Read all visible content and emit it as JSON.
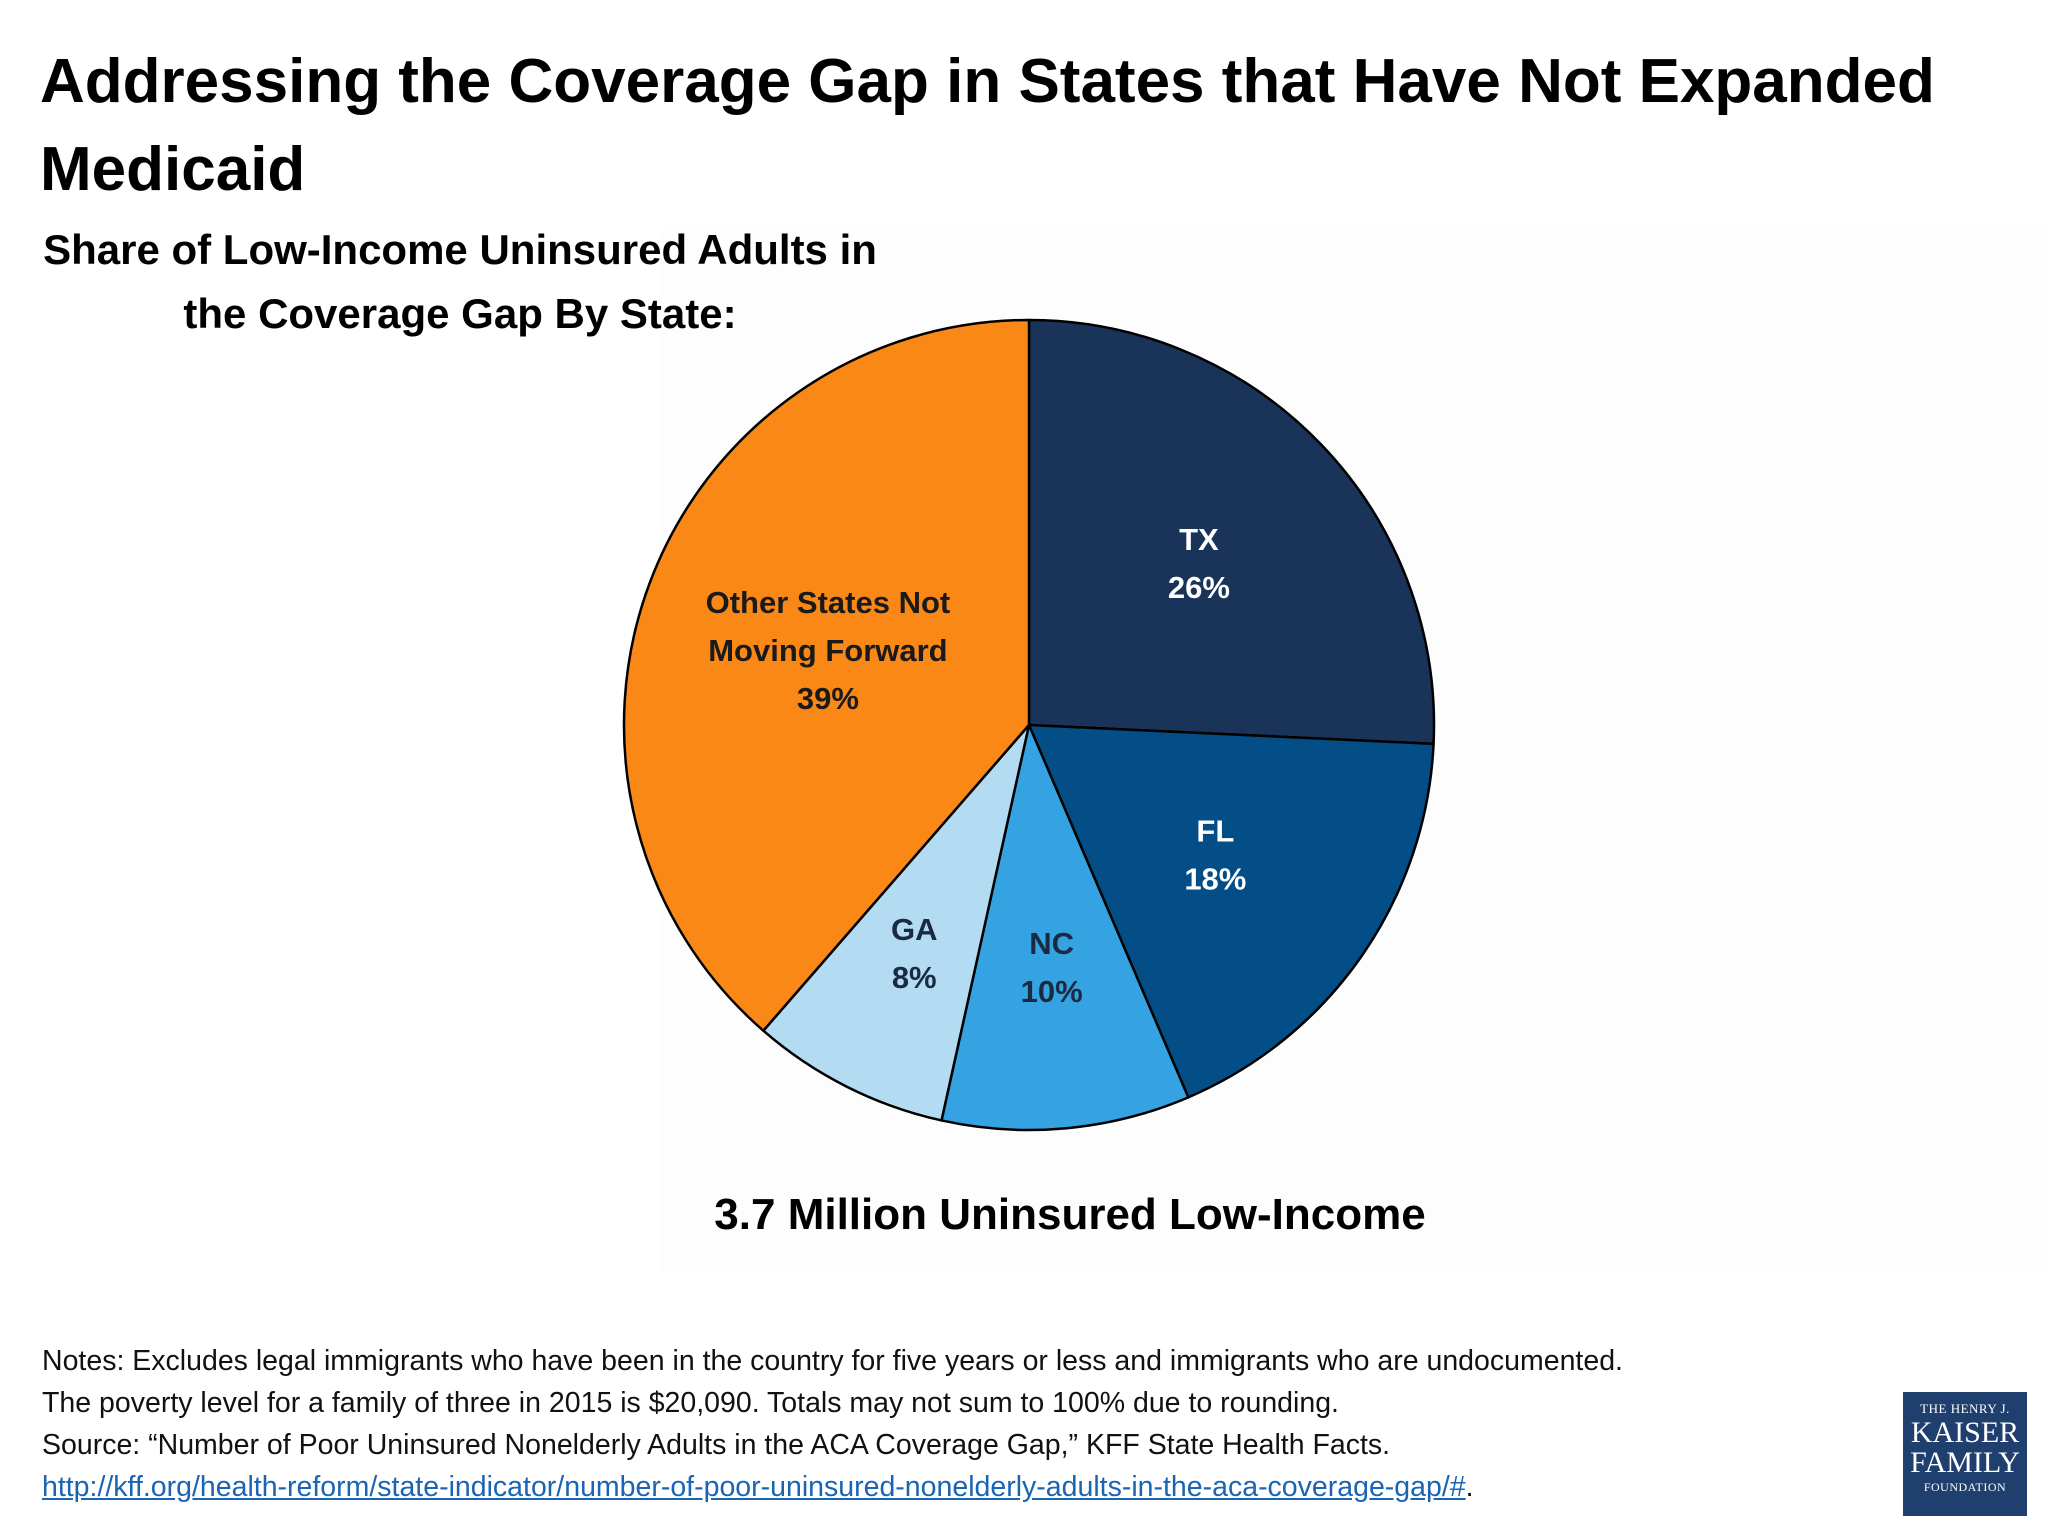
{
  "title": "Addressing the Coverage Gap in States that Have Not Expanded Medicaid",
  "chart_data": {
    "type": "pie",
    "title": "Share of Low-Income Uninsured Adults in the Coverage Gap By State:",
    "total_label": "3.7 Million Uninsured Low-Income",
    "slices": [
      {
        "label": "TX",
        "value": 26,
        "value_label": "26%",
        "color": "#1a3358",
        "text_color": "#ffffff"
      },
      {
        "label": "FL",
        "value": 18,
        "value_label": "18%",
        "color": "#034e86",
        "text_color": "#ffffff"
      },
      {
        "label": "NC",
        "value": 10,
        "value_label": "10%",
        "color": "#35a2e2",
        "text_color": "#1a2a40"
      },
      {
        "label": "GA",
        "value": 8,
        "value_label": "8%",
        "color": "#b3dcf3",
        "text_color": "#1a2a40"
      },
      {
        "label": "Other States Not Moving Forward",
        "value": 39,
        "value_label": "39%",
        "color": "#fa8817",
        "text_color": "#1a1a1a"
      }
    ]
  },
  "notes": {
    "line1": "Notes: Excludes legal immigrants who have been in the country for five years or less and immigrants who are undocumented.",
    "line2": "The poverty level for a family of three in 2015 is $20,090. Totals may not sum to 100% due to rounding.",
    "line3": "Source: “Number of Poor Uninsured Nonelderly Adults in the ACA Coverage Gap,” KFF State Health Facts.",
    "link": "http://kff.org/health-reform/state-indicator/number-of-poor-uninsured-nonelderly-adults-in-the-aca-coverage-gap/#",
    "link_suffix": "."
  },
  "logo": {
    "line1": "THE HENRY J.",
    "line2": "KAISER",
    "line3": "FAMILY",
    "line4": "FOUNDATION",
    "color": "#1f3f6e"
  }
}
